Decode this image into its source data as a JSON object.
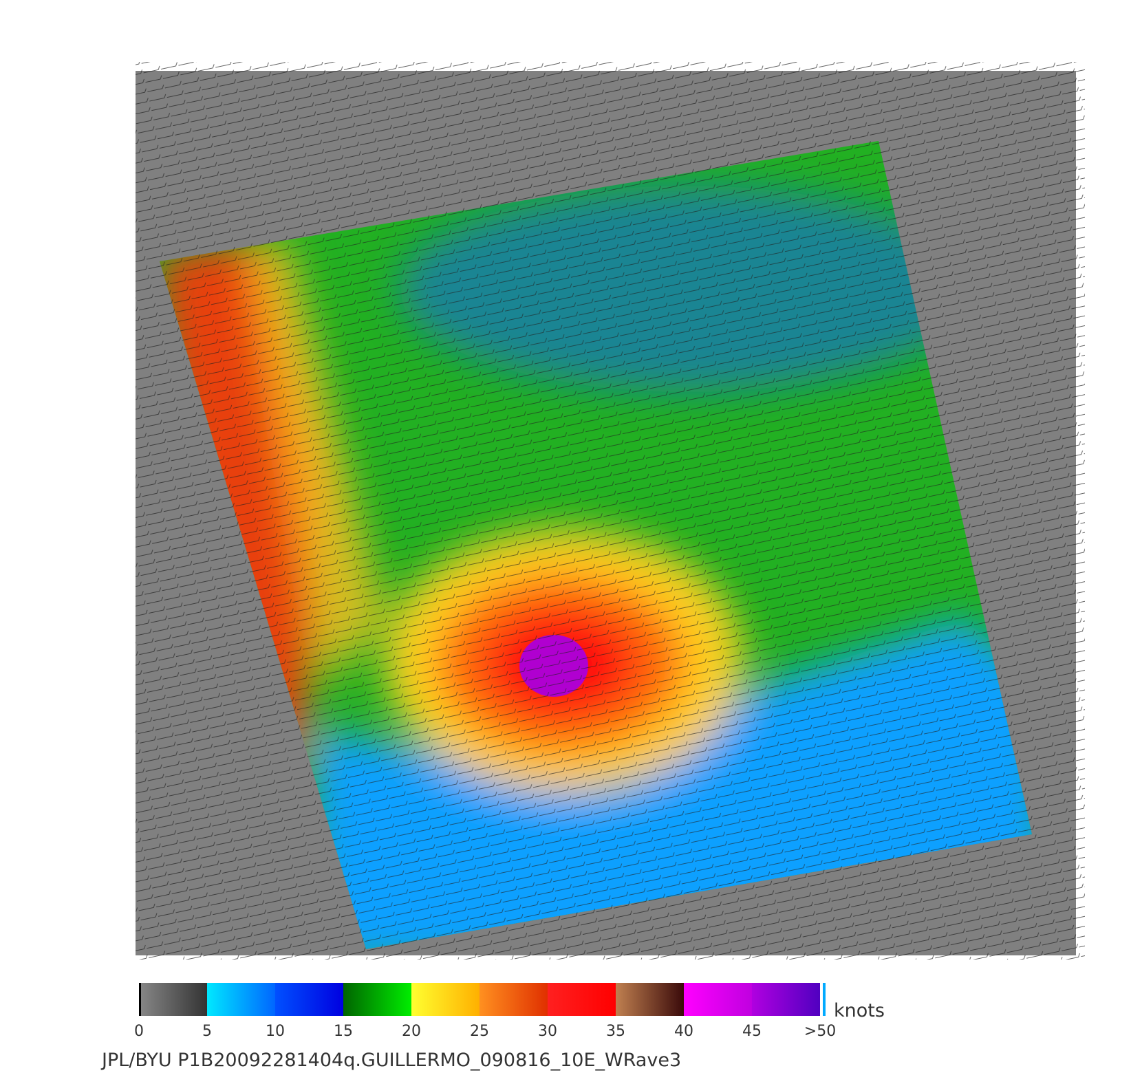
{
  "colorbar": {
    "ticks": [
      "0",
      "5",
      "10",
      "15",
      "20",
      "25",
      "30",
      "35",
      "40",
      "45",
      ">50"
    ],
    "unit": "knots"
  },
  "footer": "JPL/BYU  P1B20092281404q.GUILLERMO_090816_10E_WRave3"
}
